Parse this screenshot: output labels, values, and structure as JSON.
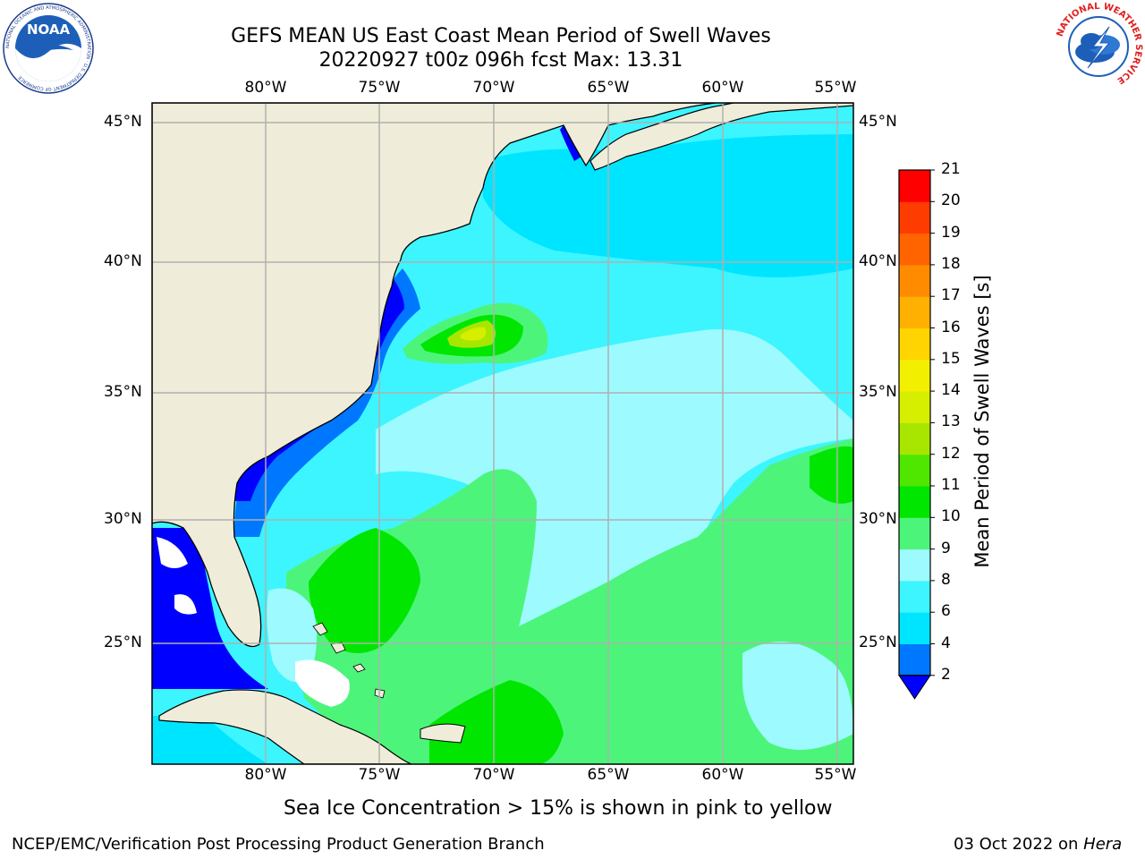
{
  "header": {
    "title_line1": "GEFS MEAN US East Coast Mean Period of Swell Waves",
    "title_line2": "20220927 t00z 096h fcst   Max: 13.31"
  },
  "logos": {
    "noaa_text": "NOAA",
    "noaa_ring": "NATIONAL OCEANIC AND ATMOSPHERIC ADMINISTRATION · U.S. DEPARTMENT OF COMMERCE",
    "nws_ring": "NATIONAL WEATHER SERVICE"
  },
  "map": {
    "lon_labels": [
      "80°W",
      "75°W",
      "70°W",
      "65°W",
      "60°W",
      "55°W"
    ],
    "lat_labels": [
      "45°N",
      "40°N",
      "35°N",
      "30°N",
      "25°N"
    ],
    "colors": {
      "land": "#efedd9",
      "coast": "#000000",
      "grid": "#b0b0b0"
    }
  },
  "colorbar": {
    "label": "Mean Period of Swell Waves [s]",
    "ticks": [
      "2",
      "4",
      "6",
      "8",
      "9",
      "10",
      "11",
      "12",
      "13",
      "14",
      "15",
      "16",
      "17",
      "18",
      "19",
      "20",
      "21"
    ],
    "colors": [
      "#0000ff",
      "#0077ff",
      "#00e5ff",
      "#3cf5ff",
      "#9dfbff",
      "#4cf57a",
      "#00e600",
      "#4fe600",
      "#a8e600",
      "#d6ee00",
      "#f3ef00",
      "#ffd400",
      "#ffb000",
      "#ff8c00",
      "#ff6400",
      "#ff3c00",
      "#ff0000"
    ],
    "extend": "min"
  },
  "footer": {
    "sea_ice_note": "Sea Ice Concentration > 15% is shown in pink to yellow",
    "credit": "NCEP/EMC/Verification Post Processing Product Generation Branch",
    "date": "03 Oct 2022 on",
    "machine": "Hera"
  }
}
